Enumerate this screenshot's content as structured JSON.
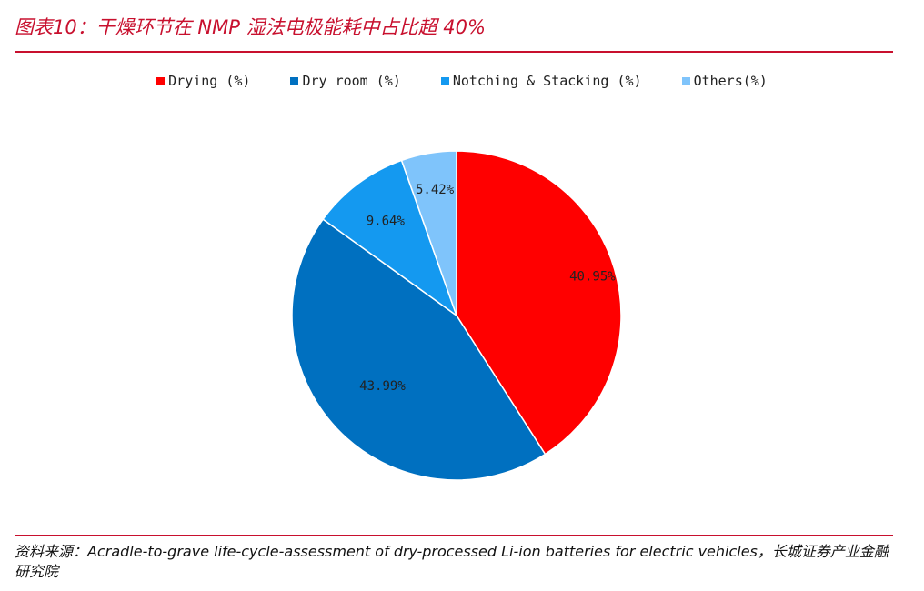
{
  "title": "图表10：干燥环节在 NMP 湿法电极能耗中占比超 40%",
  "source": "资料来源：Acradle-to-grave life-cycle-assessment of dry-processed Li-ion batteries for electric vehicles，长城证券产业金融研究院",
  "legend": [
    {
      "label": "Drying (%)",
      "color": "#ff0000"
    },
    {
      "label": "Dry room (%)",
      "color": "#0070c0"
    },
    {
      "label": "Notching & Stacking (%)",
      "color": "#1499f0"
    },
    {
      "label": "Others(%)",
      "color": "#7fc4fb"
    }
  ],
  "chart_data": {
    "type": "pie",
    "title": "干燥环节在 NMP 湿法电极能耗中占比超 40%",
    "categories": [
      "Drying (%)",
      "Dry room (%)",
      "Notching & Stacking (%)",
      "Others(%)"
    ],
    "values": [
      40.95,
      43.99,
      9.64,
      5.42
    ],
    "labels": [
      "40.95%",
      "43.99%",
      "9.64%",
      "5.42%"
    ],
    "colors": [
      "#ff0000",
      "#0070c0",
      "#1499f0",
      "#7fc4fb"
    ],
    "start": "12 o'clock",
    "direction": "clockwise",
    "legend_position": "top"
  }
}
